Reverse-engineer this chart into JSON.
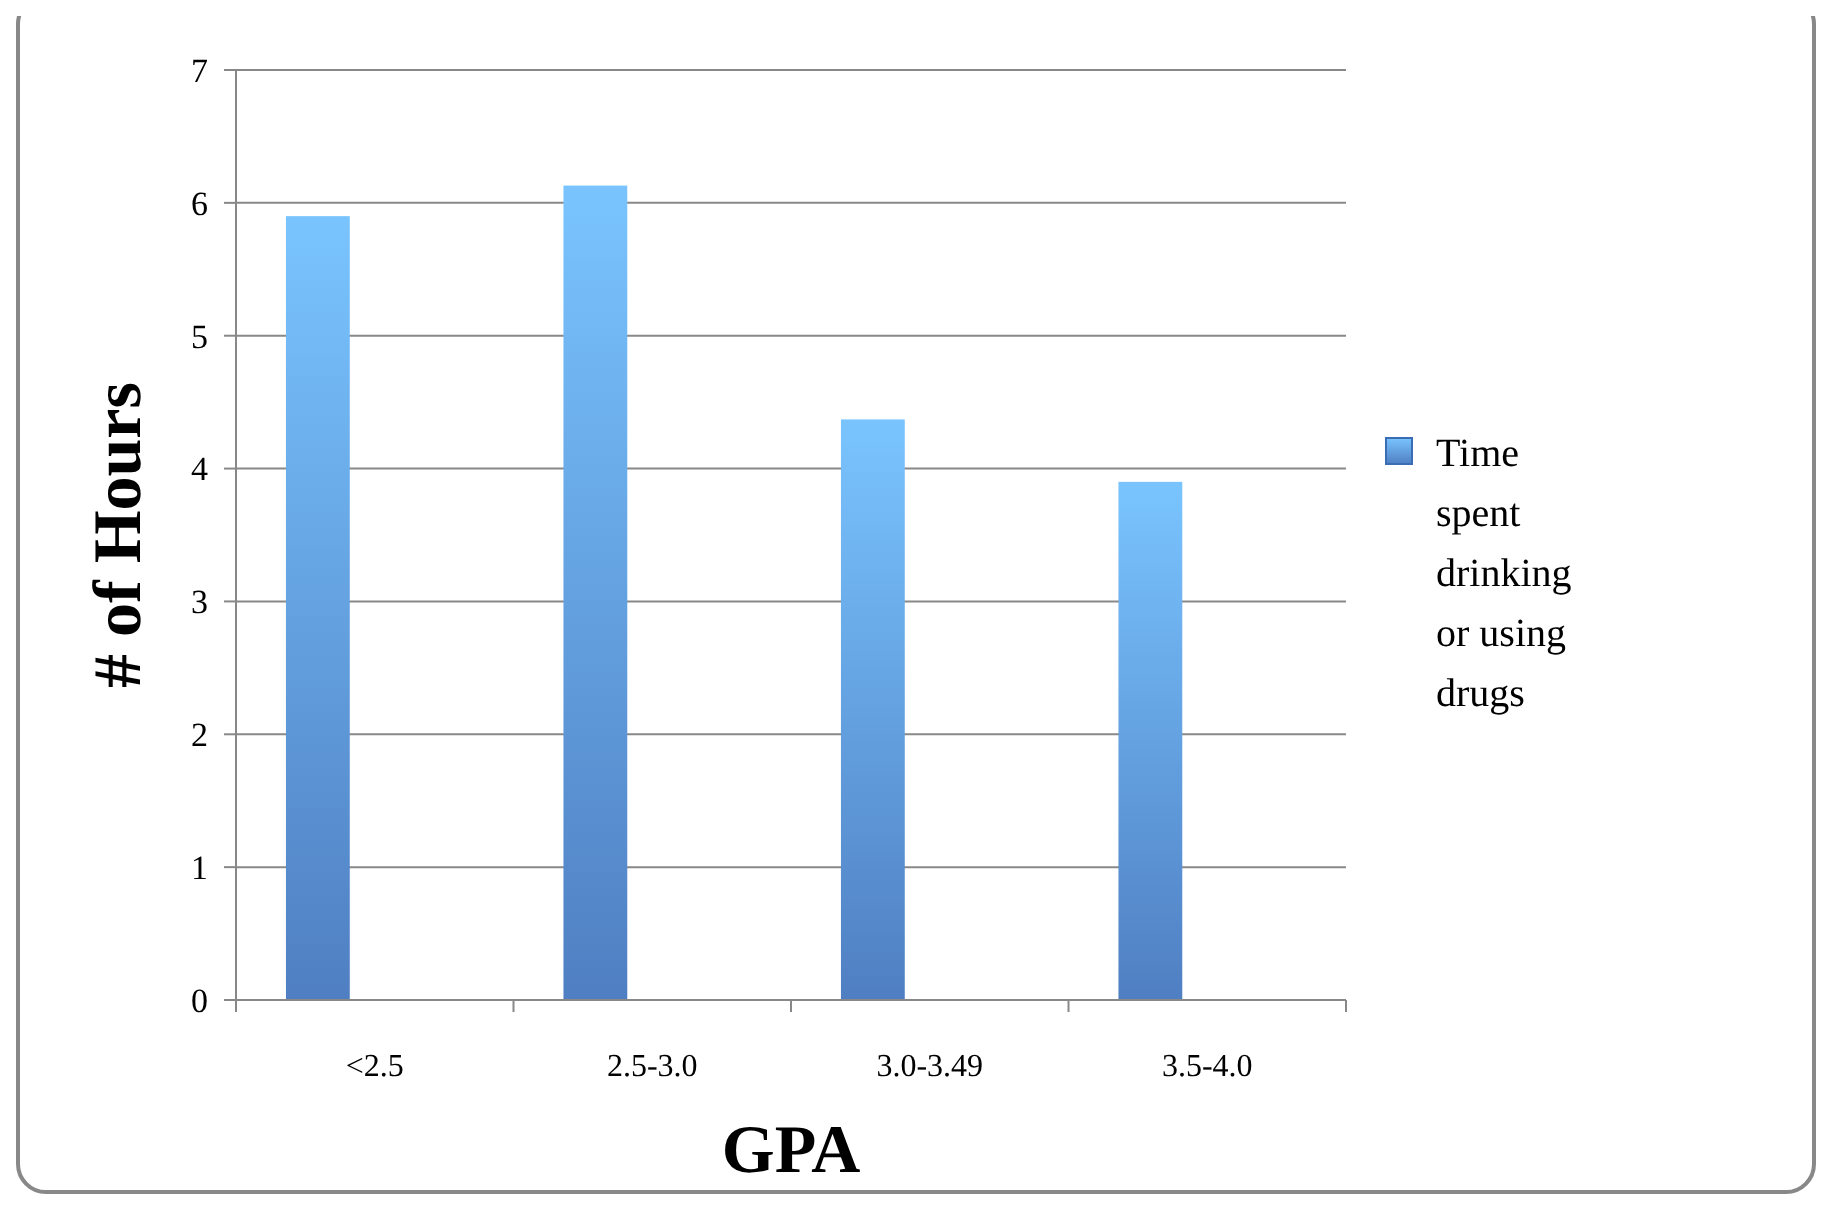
{
  "chart_data": {
    "type": "bar",
    "xlabel": "GPA",
    "ylabel": "# of Hours",
    "categories": [
      "<2.5",
      "2.5-3.0",
      "3.0-3.49",
      "3.5-4.0"
    ],
    "series": [
      {
        "name": "Time spent drinking or using drugs",
        "color": "#5b93e0",
        "values": [
          5.9,
          6.13,
          4.37,
          3.9
        ]
      }
    ],
    "ylim": [
      0,
      7
    ],
    "yticks": [
      0,
      1,
      2,
      3,
      4,
      5,
      6,
      7
    ],
    "grid": "y",
    "legend": "right"
  }
}
